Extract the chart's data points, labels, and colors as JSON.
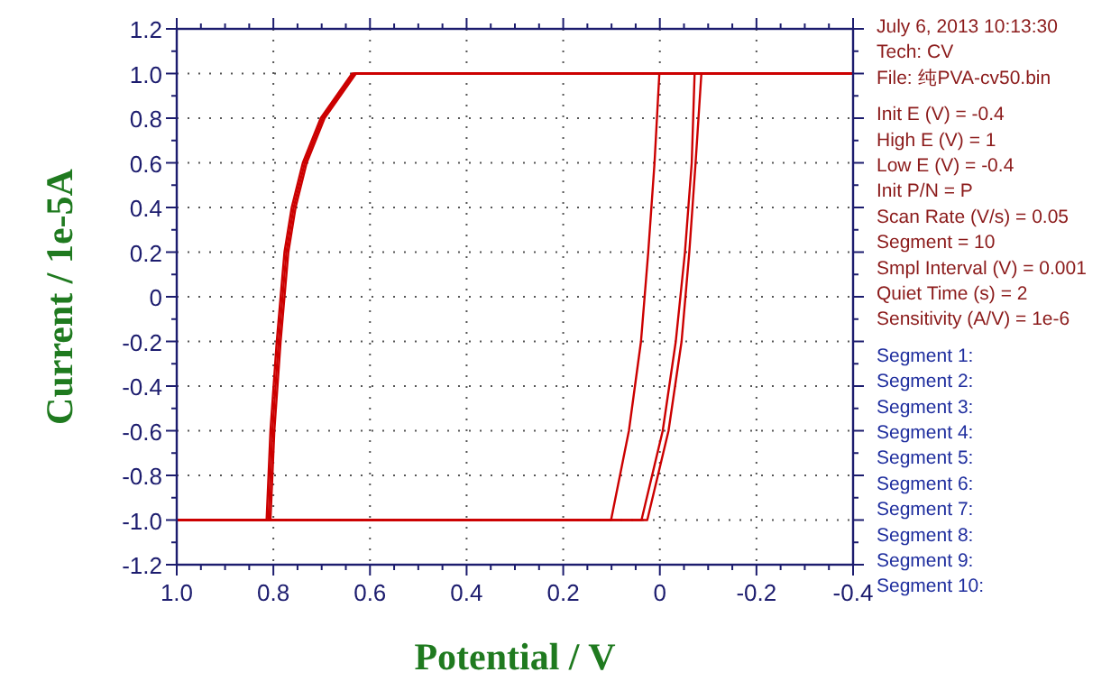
{
  "chart_data": {
    "type": "line",
    "xlabel": "Potential / V",
    "ylabel": "Current / 1e-5A",
    "annotations": [
      "July 6, 2013   10:13:30",
      "Tech: CV",
      "File: 纯PVA-cv50.bin",
      "Init E (V) = -0.4",
      "High E (V) = 1",
      "Low E (V) = -0.4",
      "Init P/N = P",
      "Scan Rate (V/s) = 0.05",
      "Segment = 10",
      "Smpl Interval (V) = 0.001",
      "Quiet Time (s) = 2",
      "Sensitivity (A/V) = 1e-6",
      "Segment 1:",
      "Segment 2:",
      "Segment 3:",
      "Segment 4:",
      "Segment 5:",
      "Segment 6:",
      "Segment 7:",
      "Segment 8:",
      "Segment 9:",
      "Segment 10:"
    ],
    "xlim": [
      1.0,
      -0.4
    ],
    "ylim": [
      -1.2,
      1.2
    ],
    "xticks": [
      {
        "value": 1,
        "label": "1.0"
      },
      0.8,
      0.6,
      0.4,
      0.2,
      0,
      -0.2,
      -0.4
    ],
    "yticks": [
      -1.2,
      {
        "value": -1,
        "label": "-1.0"
      },
      -0.8,
      -0.6,
      -0.4,
      -0.2,
      0,
      0.2,
      0.4,
      0.6,
      0.8,
      {
        "value": 1,
        "label": "1.0"
      },
      1.2
    ],
    "grid": true,
    "series": [
      {
        "color": "#cc0000",
        "x": [
          1.0,
          0.806,
          0.798,
          0.785,
          0.769,
          0.754,
          0.731,
          0.694,
          0.629,
          -0.4
        ],
        "values": [
          -1,
          -1,
          -0.6,
          -0.2,
          0.2,
          0.4,
          0.6,
          0.8,
          1,
          1
        ]
      },
      {
        "color": "#cc0000",
        "x": [
          1.0,
          0.81,
          0.802,
          0.789,
          0.773,
          0.758,
          0.735,
          0.698,
          0.633,
          -0.4
        ],
        "values": [
          -1,
          -1,
          -0.6,
          -0.2,
          0.2,
          0.4,
          0.6,
          0.8,
          1,
          1
        ]
      },
      {
        "color": "#cc0000",
        "x": [
          1.0,
          0.814,
          0.806,
          0.793,
          0.777,
          0.762,
          0.739,
          0.702,
          0.637,
          -0.4
        ],
        "values": [
          -1,
          -1,
          -0.6,
          -0.2,
          0.2,
          0.4,
          0.6,
          0.8,
          1,
          1
        ]
      },
      {
        "color": "#cc0000",
        "x": [
          1.0,
          0.101,
          0.064,
          0.039,
          0.024,
          0.011,
          0.001,
          -0.4
        ],
        "values": [
          -1,
          -1,
          -0.6,
          -0.2,
          0.2,
          0.6,
          1,
          1
        ]
      },
      {
        "color": "#cc0000",
        "x": [
          1.0,
          0.038,
          -0.006,
          -0.033,
          -0.052,
          -0.066,
          -0.072,
          -0.4
        ],
        "values": [
          -1,
          -1,
          -0.6,
          -0.2,
          0.2,
          0.6,
          1,
          1
        ]
      },
      {
        "color": "#cc0000",
        "x": [
          1.0,
          0.026,
          -0.018,
          -0.045,
          -0.061,
          -0.074,
          -0.086,
          -0.4
        ],
        "values": [
          -1,
          -1,
          -0.6,
          -0.2,
          0.2,
          0.6,
          1,
          1
        ]
      }
    ]
  }
}
